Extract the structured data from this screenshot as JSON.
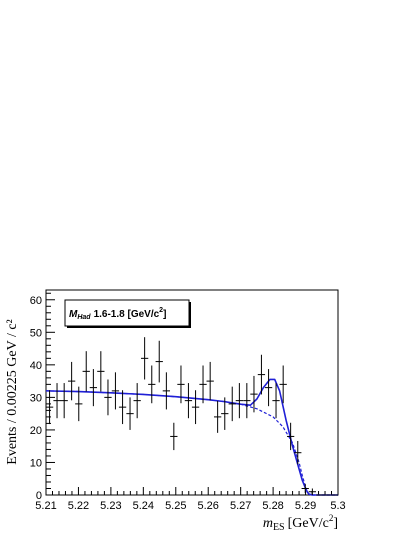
{
  "chart_data": {
    "type": "scatter",
    "xlim": [
      5.21,
      5.3
    ],
    "ylim": [
      0,
      63
    ],
    "x_ticks": [
      "5.21",
      "5.22",
      "5.23",
      "5.24",
      "5.25",
      "5.26",
      "5.27",
      "5.28",
      "5.29",
      "5.3"
    ],
    "y_ticks": [
      "0",
      "10",
      "20",
      "30",
      "40",
      "50",
      "60"
    ],
    "ylabel": "Events / 0.00225 GeV / c²",
    "xlabel": {
      "base": "m",
      "sub": "ES",
      "units": "[GeV/c",
      "sup": "2",
      "close": "]"
    },
    "legend_box": {
      "base": "M",
      "sub": "Had",
      "text": "1.6-1.8 [GeV/c",
      "sup": "2",
      "close": "]"
    },
    "bin_half_width": 0.001125,
    "points": [
      {
        "x": 5.2111,
        "y": 27,
        "err": 5.2
      },
      {
        "x": 5.2134,
        "y": 29,
        "err": 5.4
      },
      {
        "x": 5.2156,
        "y": 29,
        "err": 5.4
      },
      {
        "x": 5.2179,
        "y": 35,
        "err": 5.9
      },
      {
        "x": 5.2201,
        "y": 28,
        "err": 5.3
      },
      {
        "x": 5.2224,
        "y": 38,
        "err": 6.2
      },
      {
        "x": 5.2246,
        "y": 33,
        "err": 5.7
      },
      {
        "x": 5.2269,
        "y": 38,
        "err": 6.2
      },
      {
        "x": 5.2291,
        "y": 30,
        "err": 5.5
      },
      {
        "x": 5.2314,
        "y": 32,
        "err": 5.7
      },
      {
        "x": 5.2336,
        "y": 27,
        "err": 5.2
      },
      {
        "x": 5.2359,
        "y": 25,
        "err": 5.0
      },
      {
        "x": 5.2381,
        "y": 29,
        "err": 5.4
      },
      {
        "x": 5.2404,
        "y": 42,
        "err": 6.5
      },
      {
        "x": 5.2426,
        "y": 34,
        "err": 5.8
      },
      {
        "x": 5.2449,
        "y": 41,
        "err": 6.4
      },
      {
        "x": 5.2471,
        "y": 32,
        "err": 5.7
      },
      {
        "x": 5.2494,
        "y": 18,
        "err": 4.2
      },
      {
        "x": 5.2516,
        "y": 34,
        "err": 5.8
      },
      {
        "x": 5.2539,
        "y": 29,
        "err": 5.4
      },
      {
        "x": 5.2561,
        "y": 27,
        "err": 5.2
      },
      {
        "x": 5.2584,
        "y": 34,
        "err": 5.8
      },
      {
        "x": 5.2606,
        "y": 35,
        "err": 5.9
      },
      {
        "x": 5.2629,
        "y": 24,
        "err": 4.9
      },
      {
        "x": 5.2651,
        "y": 25,
        "err": 5.0
      },
      {
        "x": 5.2674,
        "y": 28,
        "err": 5.3
      },
      {
        "x": 5.2696,
        "y": 29,
        "err": 5.4
      },
      {
        "x": 5.2719,
        "y": 29,
        "err": 5.4
      },
      {
        "x": 5.2741,
        "y": 31,
        "err": 5.6
      },
      {
        "x": 5.2764,
        "y": 37,
        "err": 6.1
      },
      {
        "x": 5.2786,
        "y": 33,
        "err": 5.7
      },
      {
        "x": 5.2809,
        "y": 29,
        "err": 5.4
      },
      {
        "x": 5.2831,
        "y": 34,
        "err": 5.8
      },
      {
        "x": 5.2854,
        "y": 18,
        "err": 4.2
      },
      {
        "x": 5.2876,
        "y": 13,
        "err": 3.6
      },
      {
        "x": 5.2899,
        "y": 2,
        "err": 1.4
      },
      {
        "x": 5.2921,
        "y": 1,
        "err": 1.0
      },
      {
        "x": 5.2944,
        "y": 0,
        "err": 0
      },
      {
        "x": 5.2966,
        "y": 0,
        "err": 0
      },
      {
        "x": 5.2989,
        "y": 0,
        "err": 0
      }
    ],
    "fit_total": {
      "name": "",
      "x": [
        5.21,
        5.22,
        5.23,
        5.24,
        5.25,
        5.26,
        5.265,
        5.27,
        5.273,
        5.275,
        5.277,
        5.279,
        5.2805,
        5.282,
        5.284,
        5.286,
        5.288,
        5.289,
        5.29,
        5.2905,
        5.291,
        5.292,
        5.295,
        5.3
      ],
      "y": [
        32,
        31.8,
        31.4,
        30.9,
        30.2,
        29.3,
        28.7,
        27.9,
        27.6,
        29.5,
        33,
        35.5,
        35.5,
        32,
        23,
        15,
        8,
        4.5,
        2,
        1,
        0.3,
        0,
        0,
        0
      ],
      "color": "#1f1fd6"
    },
    "fit_background": {
      "name": "",
      "x": [
        5.21,
        5.22,
        5.23,
        5.24,
        5.25,
        5.26,
        5.265,
        5.27,
        5.275,
        5.28,
        5.283,
        5.286,
        5.288,
        5.289,
        5.29,
        5.2905,
        5.291,
        5.292,
        5.3
      ],
      "y": [
        32,
        31.8,
        31.4,
        30.9,
        30.2,
        29.3,
        28.7,
        27.9,
        26.5,
        24,
        21,
        16,
        10,
        6,
        2.5,
        1,
        0.3,
        0,
        0
      ],
      "color": "#1f1fd6",
      "style": "dashed"
    },
    "grid": false,
    "legend_placement": "top-left"
  }
}
